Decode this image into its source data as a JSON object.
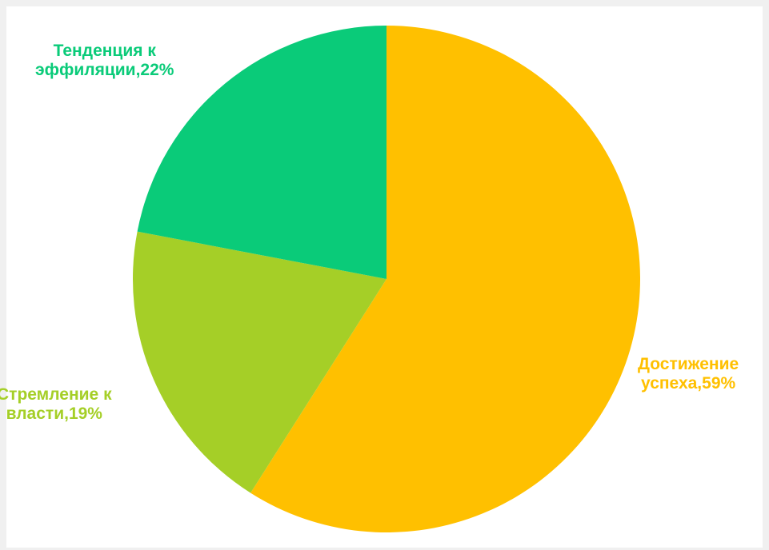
{
  "chart_data": {
    "type": "pie",
    "title": "",
    "start_angle_deg": 0,
    "direction": "clockwise",
    "slices": [
      {
        "label_line1": "Достижение",
        "label_line2": "успеха,59%",
        "value": 59,
        "color": "#FFC000"
      },
      {
        "label_line1": "Стремление к",
        "label_line2": "власти,19%",
        "value": 19,
        "color": "#A5CF27"
      },
      {
        "label_line1": "Тенденция к",
        "label_line2": "эффиляции,22%",
        "value": 22,
        "color": "#0ACB79"
      }
    ],
    "legend": "none",
    "data_labels": "outside"
  }
}
